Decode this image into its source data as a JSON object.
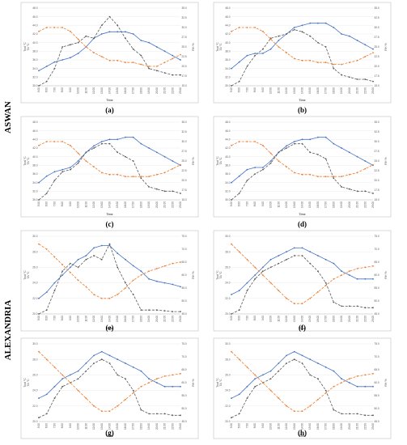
{
  "row_labels": [
    "ASWAN",
    "ALEXANDRIA"
  ],
  "colors": {
    "tout": "#4472C4",
    "ta": "#595959",
    "rh": "#ED7D31",
    "frame": "#BFBFBF",
    "grid": "#E6E6E6"
  },
  "chart_data": [
    {
      "type": "line",
      "panel": "(a)",
      "group": "ASWAN",
      "x": [
        "5:00",
        "6:00",
        "7:00",
        "8:00",
        "9:00",
        "10:00",
        "11:00",
        "12:00",
        "13:00",
        "14:00",
        "15:00",
        "16:00",
        "17:00",
        "18:00",
        "19:00",
        "20:00",
        "21:00",
        "22:00",
        "23:00"
      ],
      "xlabel": "Time",
      "ylabel": "Tout °C",
      "ylabel2": "TA °C",
      "ylabel_right": "RH %",
      "ylim": [
        30,
        48
      ],
      "yticks": [
        30,
        32,
        34,
        36,
        38,
        40,
        42,
        44,
        46,
        48
      ],
      "ylim_right": [
        15,
        35
      ],
      "yticks_right": [
        15,
        17.5,
        20,
        22.5,
        25,
        27.5,
        30,
        32.5,
        35
      ],
      "series": [
        {
          "values": [
            33.5,
            34.5,
            35.5,
            36.0,
            36.5,
            37.5,
            39.0,
            41.0,
            42.0,
            42.5,
            42.5,
            42.5,
            42.0,
            40.5,
            40.0,
            39.0,
            38.0,
            37.0,
            36.0
          ],
          "color_key": "tout",
          "dash": "solid",
          "axis": "left"
        },
        {
          "values": [
            30.0,
            31.0,
            34.0,
            39.0,
            39.5,
            40.0,
            41.5,
            41.0,
            44.0,
            46.0,
            44.0,
            41.0,
            38.5,
            37.0,
            34.0,
            33.5,
            33.0,
            32.5,
            32.5
          ],
          "color_key": "ta",
          "dash": "dash",
          "axis": "left"
        },
        {
          "values": [
            29.0,
            30.0,
            30.0,
            30.0,
            29.0,
            27.0,
            25.0,
            23.5,
            22.5,
            21.5,
            21.5,
            21.0,
            21.0,
            20.5,
            20.0,
            20.0,
            21.0,
            22.0,
            23.0
          ],
          "color_key": "rh",
          "dash": "dash",
          "axis": "right"
        }
      ]
    },
    {
      "type": "line",
      "panel": "(b)",
      "group": "ASWAN",
      "x": [
        "5:00",
        "6:00",
        "7:00",
        "8:00",
        "9:00",
        "10:00",
        "11:00",
        "12:00",
        "13:00",
        "14:00",
        "15:00",
        "16:00",
        "17:00",
        "18:00",
        "19:00",
        "20:00",
        "21:00",
        "22:00",
        "23:00"
      ],
      "xlabel": "Time",
      "ylabel": "Tout °C",
      "ylabel2": "TA °C",
      "ylabel_right": "RH %",
      "ylim": [
        30,
        48
      ],
      "yticks": [
        30,
        32,
        34,
        36,
        38,
        40,
        42,
        44,
        46,
        48
      ],
      "ylim_right": [
        15,
        35
      ],
      "yticks_right": [
        15,
        17.5,
        20,
        22.5,
        25,
        27.5,
        30,
        32.5,
        35
      ],
      "series": [
        {
          "values": [
            34.0,
            35.5,
            37.0,
            37.5,
            37.5,
            38.5,
            40.5,
            42.0,
            43.5,
            44.0,
            44.5,
            44.5,
            44.5,
            43.5,
            42.0,
            41.5,
            40.5,
            39.5,
            38.5
          ],
          "color_key": "tout",
          "dash": "solid",
          "axis": "left"
        },
        {
          "values": [
            30.0,
            31.0,
            34.5,
            37.0,
            38.5,
            41.0,
            41.5,
            42.0,
            43.0,
            42.5,
            41.5,
            40.0,
            39.0,
            34.0,
            32.5,
            32.0,
            31.5,
            31.5,
            31.0
          ],
          "color_key": "ta",
          "dash": "dash",
          "axis": "left"
        },
        {
          "values": [
            29.0,
            30.0,
            30.0,
            30.0,
            29.0,
            27.0,
            25.0,
            23.5,
            22.0,
            21.5,
            21.5,
            21.0,
            21.0,
            20.5,
            20.5,
            21.0,
            21.5,
            22.5,
            23.5
          ],
          "color_key": "rh",
          "dash": "dash",
          "axis": "right"
        }
      ]
    },
    {
      "type": "line",
      "panel": "(c)",
      "group": "ASWAN",
      "x": [
        "5:00",
        "6:00",
        "7:00",
        "8:00",
        "9:00",
        "10:00",
        "11:00",
        "12:00",
        "13:00",
        "14:00",
        "15:00",
        "16:00",
        "17:00",
        "18:00",
        "19:00",
        "20:00",
        "21:00",
        "22:00",
        "23:00"
      ],
      "xlabel": "Time",
      "ylabel": "Tout °C",
      "ylabel2": "TA °C",
      "ylabel_right": "RH %",
      "ylim": [
        30,
        48
      ],
      "yticks": [
        30,
        32,
        34,
        36,
        38,
        40,
        42,
        44,
        46,
        48
      ],
      "ylim_right": [
        15,
        35
      ],
      "yticks_right": [
        15,
        17.5,
        20,
        22.5,
        25,
        27.5,
        30,
        32.5,
        35
      ],
      "series": [
        {
          "values": [
            34.0,
            35.5,
            36.5,
            37.0,
            37.5,
            39.0,
            41.0,
            42.5,
            43.5,
            44.0,
            44.0,
            44.5,
            44.5,
            43.0,
            42.0,
            41.0,
            40.0,
            39.0,
            38.0
          ],
          "color_key": "tout",
          "dash": "solid",
          "axis": "left"
        },
        {
          "values": [
            30.0,
            31.5,
            34.5,
            36.5,
            37.0,
            38.5,
            41.0,
            42.0,
            43.0,
            43.0,
            41.0,
            40.0,
            39.0,
            35.0,
            33.0,
            32.5,
            32.0,
            32.0,
            31.5
          ],
          "color_key": "ta",
          "dash": "dash",
          "axis": "left"
        },
        {
          "values": [
            29.0,
            30.0,
            30.0,
            30.0,
            29.0,
            27.0,
            25.0,
            23.5,
            22.0,
            21.5,
            21.5,
            21.0,
            21.0,
            21.0,
            21.0,
            21.5,
            22.0,
            23.0,
            24.0
          ],
          "color_key": "rh",
          "dash": "dash",
          "axis": "right"
        }
      ]
    },
    {
      "type": "line",
      "panel": "(d)",
      "group": "ASWAN",
      "x": [
        "5:00",
        "6:00",
        "7:00",
        "8:00",
        "9:00",
        "10:00",
        "11:00",
        "12:00",
        "13:00",
        "14:00",
        "15:00",
        "16:00",
        "17:00",
        "18:00",
        "19:00",
        "20:00",
        "21:00",
        "22:00",
        "23:00"
      ],
      "xlabel": "Time",
      "ylabel": "Tout °C",
      "ylabel2": "TA °C",
      "ylabel_right": "RH %",
      "ylim": [
        30,
        48
      ],
      "yticks": [
        30,
        32,
        34,
        36,
        38,
        40,
        42,
        44,
        46,
        48
      ],
      "ylim_right": [
        15,
        35
      ],
      "yticks_right": [
        15,
        17.5,
        20,
        22.5,
        25,
        27.5,
        30,
        32.5,
        35
      ],
      "series": [
        {
          "values": [
            34.0,
            35.5,
            37.0,
            37.5,
            37.5,
            39.0,
            41.0,
            42.5,
            43.5,
            44.0,
            44.0,
            44.5,
            44.5,
            43.0,
            42.0,
            41.0,
            40.0,
            39.0,
            38.0
          ],
          "color_key": "tout",
          "dash": "solid",
          "axis": "left"
        },
        {
          "values": [
            30.0,
            31.5,
            34.5,
            36.0,
            37.0,
            38.5,
            41.0,
            42.0,
            43.0,
            43.0,
            41.0,
            40.5,
            39.5,
            35.0,
            33.0,
            32.5,
            32.0,
            32.0,
            31.5
          ],
          "color_key": "ta",
          "dash": "dash",
          "axis": "left"
        },
        {
          "values": [
            29.0,
            30.0,
            30.0,
            30.0,
            29.0,
            27.0,
            25.0,
            23.5,
            22.0,
            21.5,
            21.5,
            21.0,
            21.0,
            21.0,
            21.0,
            21.5,
            22.0,
            23.0,
            24.0
          ],
          "color_key": "rh",
          "dash": "dash",
          "axis": "right"
        }
      ]
    },
    {
      "type": "line",
      "panel": "(e)",
      "group": "ALEXANDRIA",
      "x": [
        "5:00",
        "6:00",
        "7:00",
        "8:00",
        "9:00",
        "10:00",
        "11:00",
        "12:00",
        "13:00",
        "14:00",
        "15:00",
        "16:00",
        "17:00",
        "18:00",
        "19:00",
        "20:00",
        "21:00",
        "22:00",
        "23:00"
      ],
      "xlabel": "Time",
      "ylabel": "Tout °C",
      "ylabel2": "TA °C",
      "ylabel_right": "RH %",
      "ylim": [
        20,
        30
      ],
      "yticks": [
        20,
        22,
        24,
        26,
        28,
        30
      ],
      "ylim_right": [
        45,
        75
      ],
      "yticks_right": [
        45,
        50,
        55,
        60,
        65,
        70,
        75
      ],
      "series": [
        {
          "values": [
            22.0,
            22.8,
            24.0,
            25.0,
            26.0,
            27.0,
            27.5,
            28.5,
            28.8,
            28.8,
            27.8,
            27.0,
            26.2,
            25.5,
            24.5,
            24.2,
            24.0,
            23.8,
            23.5
          ],
          "color_key": "tout",
          "dash": "solid",
          "axis": "left"
        },
        {
          "values": [
            20.0,
            20.5,
            23.0,
            25.5,
            26.5,
            26.0,
            27.0,
            27.5,
            27.0,
            29.0,
            26.0,
            24.0,
            22.5,
            20.5,
            20.5,
            20.5,
            20.4,
            20.3,
            20.3
          ],
          "color_key": "ta",
          "dash": "dash",
          "axis": "left"
        },
        {
          "values": [
            72.0,
            70.0,
            67.0,
            64.0,
            61.0,
            58.0,
            55.5,
            52.5,
            51.0,
            51.0,
            52.5,
            55.0,
            58.0,
            60.0,
            61.5,
            62.5,
            63.5,
            64.5,
            65.0
          ],
          "color_key": "rh",
          "dash": "dash",
          "axis": "right"
        }
      ]
    },
    {
      "type": "line",
      "panel": "(f)",
      "group": "ALEXANDRIA",
      "x": [
        "5:00",
        "6:00",
        "7:00",
        "8:00",
        "9:00",
        "10:00",
        "11:00",
        "12:00",
        "13:00",
        "14:00",
        "15:00",
        "16:00",
        "17:00",
        "18:00",
        "19:00",
        "20:00",
        "21:00",
        "22:00",
        "23:00"
      ],
      "xlabel": "Time",
      "ylabel": "Tout °C",
      "ylabel2": "TA °C",
      "ylabel_right": "RH %",
      "ylim": [
        20,
        30
      ],
      "yticks": [
        20,
        22,
        24,
        26,
        28,
        30
      ],
      "ylim_right": [
        45,
        75
      ],
      "yticks_right": [
        45,
        50,
        55,
        60,
        65,
        70,
        75
      ],
      "series": [
        {
          "values": [
            22.5,
            23.0,
            24.0,
            25.0,
            26.0,
            27.0,
            27.5,
            28.0,
            28.5,
            28.5,
            28.0,
            27.5,
            27.0,
            26.5,
            25.5,
            25.0,
            24.5,
            24.5,
            24.5
          ],
          "color_key": "tout",
          "dash": "solid",
          "axis": "left"
        },
        {
          "values": [
            20.0,
            20.5,
            23.0,
            24.5,
            25.5,
            26.0,
            26.5,
            27.0,
            27.5,
            27.5,
            26.5,
            25.5,
            24.0,
            21.5,
            21.0,
            21.0,
            21.0,
            20.8,
            20.8
          ],
          "color_key": "ta",
          "dash": "dash",
          "axis": "left"
        },
        {
          "values": [
            72.0,
            69.0,
            66.0,
            63.0,
            60.0,
            57.0,
            54.0,
            51.0,
            49.0,
            49.0,
            51.0,
            53.5,
            56.0,
            58.5,
            60.0,
            61.5,
            62.5,
            63.0,
            63.5
          ],
          "color_key": "rh",
          "dash": "dash",
          "axis": "right"
        }
      ]
    },
    {
      "type": "line",
      "panel": "(g)",
      "group": "ALEXANDRIA",
      "x": [
        "5:00",
        "6:00",
        "7:00",
        "8:00",
        "9:00",
        "10:00",
        "11:00",
        "12:00",
        "13:00",
        "14:00",
        "15:00",
        "16:00",
        "17:00",
        "18:00",
        "19:00",
        "20:00",
        "21:00",
        "22:00",
        "23:00"
      ],
      "xlabel": "Time",
      "ylabel": "Tout °C",
      "ylabel2": "TA °C",
      "ylabel_right": "RH %",
      "ylim": [
        20,
        30
      ],
      "yticks": [
        20,
        22,
        24,
        26,
        28,
        30
      ],
      "ylim_right": [
        45,
        75
      ],
      "yticks_right": [
        45,
        50,
        55,
        60,
        65,
        70,
        75
      ],
      "series": [
        {
          "values": [
            23.0,
            23.5,
            24.5,
            25.5,
            26.0,
            26.5,
            27.5,
            28.5,
            29.0,
            28.5,
            28.0,
            27.5,
            27.0,
            26.5,
            25.5,
            25.0,
            24.5,
            24.5,
            24.5
          ],
          "color_key": "tout",
          "dash": "solid",
          "axis": "left"
        },
        {
          "values": [
            20.5,
            21.0,
            23.0,
            24.5,
            25.0,
            25.5,
            26.5,
            27.5,
            28.0,
            27.5,
            26.0,
            25.5,
            24.0,
            21.5,
            21.0,
            21.0,
            21.0,
            20.8,
            20.8
          ],
          "color_key": "ta",
          "dash": "dash",
          "axis": "left"
        },
        {
          "values": [
            72.0,
            69.0,
            66.0,
            63.0,
            60.0,
            57.0,
            54.0,
            51.0,
            49.0,
            49.0,
            51.0,
            53.5,
            56.0,
            58.5,
            60.0,
            61.5,
            62.5,
            63.0,
            63.5
          ],
          "color_key": "rh",
          "dash": "dash",
          "axis": "right"
        }
      ]
    },
    {
      "type": "line",
      "panel": "(h)",
      "group": "ALEXANDRIA",
      "x": [
        "5:00",
        "6:00",
        "7:00",
        "8:00",
        "9:00",
        "10:00",
        "11:00",
        "12:00",
        "13:00",
        "14:00",
        "15:00",
        "16:00",
        "17:00",
        "18:00",
        "19:00",
        "20:00",
        "21:00",
        "22:00",
        "23:00"
      ],
      "xlabel": "Time",
      "ylabel": "Tout °C",
      "ylabel2": "TA °C",
      "ylabel_right": "RH %",
      "ylim": [
        20,
        30
      ],
      "yticks": [
        20,
        22,
        24,
        26,
        28,
        30
      ],
      "ylim_right": [
        45,
        75
      ],
      "yticks_right": [
        45,
        50,
        55,
        60,
        65,
        70,
        75
      ],
      "series": [
        {
          "values": [
            23.0,
            23.5,
            24.5,
            25.5,
            26.0,
            26.5,
            27.5,
            28.5,
            29.0,
            28.5,
            28.0,
            27.5,
            27.0,
            26.5,
            25.5,
            25.0,
            24.5,
            24.5,
            24.5
          ],
          "color_key": "tout",
          "dash": "solid",
          "axis": "left"
        },
        {
          "values": [
            20.5,
            21.0,
            23.0,
            24.5,
            25.0,
            25.5,
            26.5,
            27.5,
            28.0,
            27.5,
            26.0,
            25.5,
            24.0,
            21.5,
            21.0,
            21.0,
            21.0,
            20.8,
            20.8
          ],
          "color_key": "ta",
          "dash": "dash",
          "axis": "left"
        },
        {
          "values": [
            72.0,
            69.0,
            66.0,
            63.0,
            60.0,
            57.0,
            54.0,
            51.0,
            49.0,
            49.0,
            51.0,
            53.5,
            56.0,
            58.5,
            60.0,
            61.5,
            62.5,
            63.0,
            63.5
          ],
          "color_key": "rh",
          "dash": "dash",
          "axis": "right"
        }
      ]
    }
  ]
}
